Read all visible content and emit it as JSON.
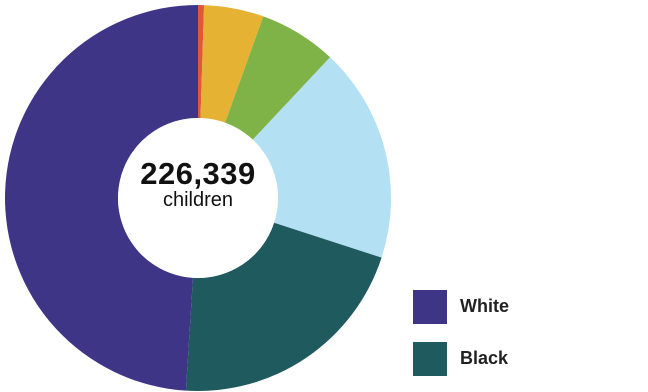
{
  "center": {
    "value": "226,339",
    "label": "children"
  },
  "chart_data": {
    "type": "pie",
    "variant": "donut",
    "total": 226339,
    "slices": [
      {
        "label": "",
        "share": 0.005,
        "color": "#e0583a"
      },
      {
        "label": "",
        "share": 0.05,
        "color": "#e5b233"
      },
      {
        "label": "",
        "share": 0.065,
        "color": "#7fb347"
      },
      {
        "label": "",
        "share": 0.18,
        "color": "#b4e0f4"
      },
      {
        "label": "Black",
        "share": 0.21,
        "color": "#1f5a5f"
      },
      {
        "label": "White",
        "share": 0.49,
        "color": "#3e3587"
      }
    ]
  },
  "legend": {
    "items": [
      {
        "label": "White",
        "color": "#3e3587"
      },
      {
        "label": "Black",
        "color": "#1f5a5f"
      }
    ]
  }
}
